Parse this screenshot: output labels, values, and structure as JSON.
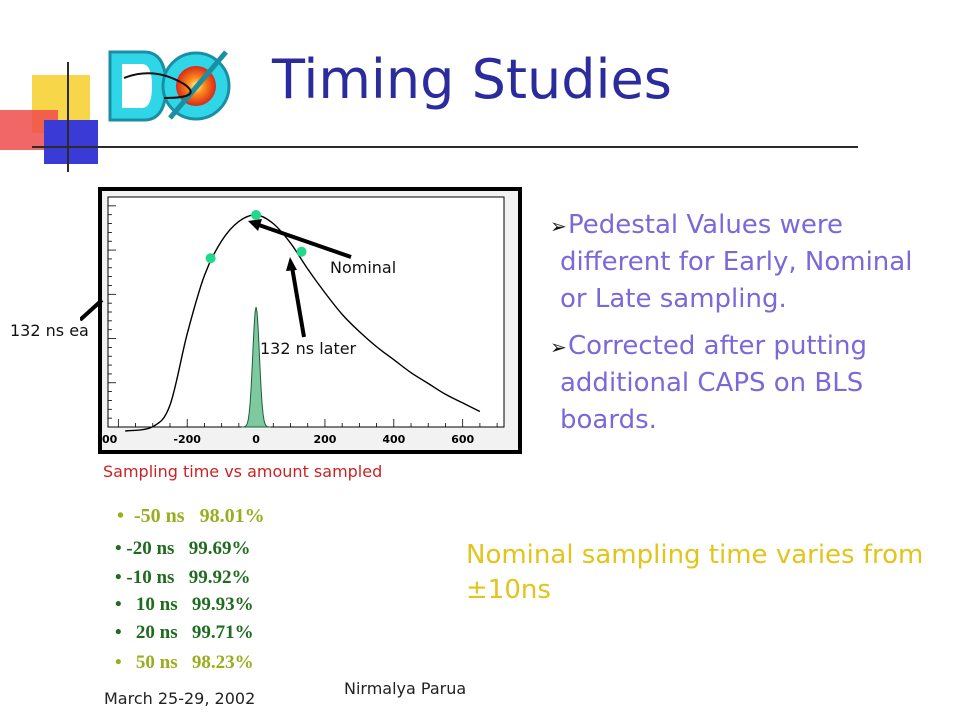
{
  "slide": {
    "title": "Timing Studies",
    "logo_text": "DØ"
  },
  "chart": {
    "callouts": {
      "early": "132 ns ea",
      "nominal": "Nominal",
      "later": "132 ns later"
    },
    "caption": "Sampling time vs amount sampled"
  },
  "chart_data": {
    "type": "line",
    "title": "",
    "xlabel": "",
    "ylabel": "",
    "x_ticks": [
      "00",
      "-200",
      "0",
      "200",
      "400",
      "600"
    ],
    "xlim": [
      -430,
      720
    ],
    "series": [
      {
        "x": [
          -380,
          -300,
          -250,
          -200,
          -150,
          -100,
          -50,
          0,
          50,
          100,
          150,
          200,
          250,
          300,
          350,
          400,
          450,
          500,
          550,
          600,
          650
        ],
        "values": [
          0,
          0.02,
          0.12,
          0.45,
          0.72,
          0.88,
          0.97,
          1.0,
          0.96,
          0.87,
          0.75,
          0.64,
          0.54,
          0.46,
          0.39,
          0.33,
          0.27,
          0.22,
          0.17,
          0.13,
          0.09
        ]
      }
    ],
    "markers": [
      {
        "x": -132,
        "value": 0.8
      },
      {
        "x": 0,
        "value": 1.0
      },
      {
        "x": 132,
        "value": 0.83
      }
    ]
  },
  "bullets": [
    "Pedestal Values were different for Early, Nominal or Late sampling.",
    "Corrected after putting additional CAPS on BLS boards."
  ],
  "stats": [
    {
      "text": "•  -50 ns   98.01%",
      "color": "#9aad1e"
    },
    {
      "text": "• -20 ns   99.69%",
      "color": "#1f6b1f"
    },
    {
      "text": "• -10 ns   99.92%",
      "color": "#1f6b1f"
    },
    {
      "text": "•   10 ns   99.93%",
      "color": "#1f6b1f"
    },
    {
      "text": "•   20 ns   99.71%",
      "color": "#1f6b1f"
    },
    {
      "text": "•   50 ns   98.23%",
      "color": "#9aad1e"
    }
  ],
  "nominal_note": "Nominal sampling time varies from ±10ns",
  "footer": {
    "date": "March 25-29, 2002",
    "author": "Nirmalya Parua"
  }
}
